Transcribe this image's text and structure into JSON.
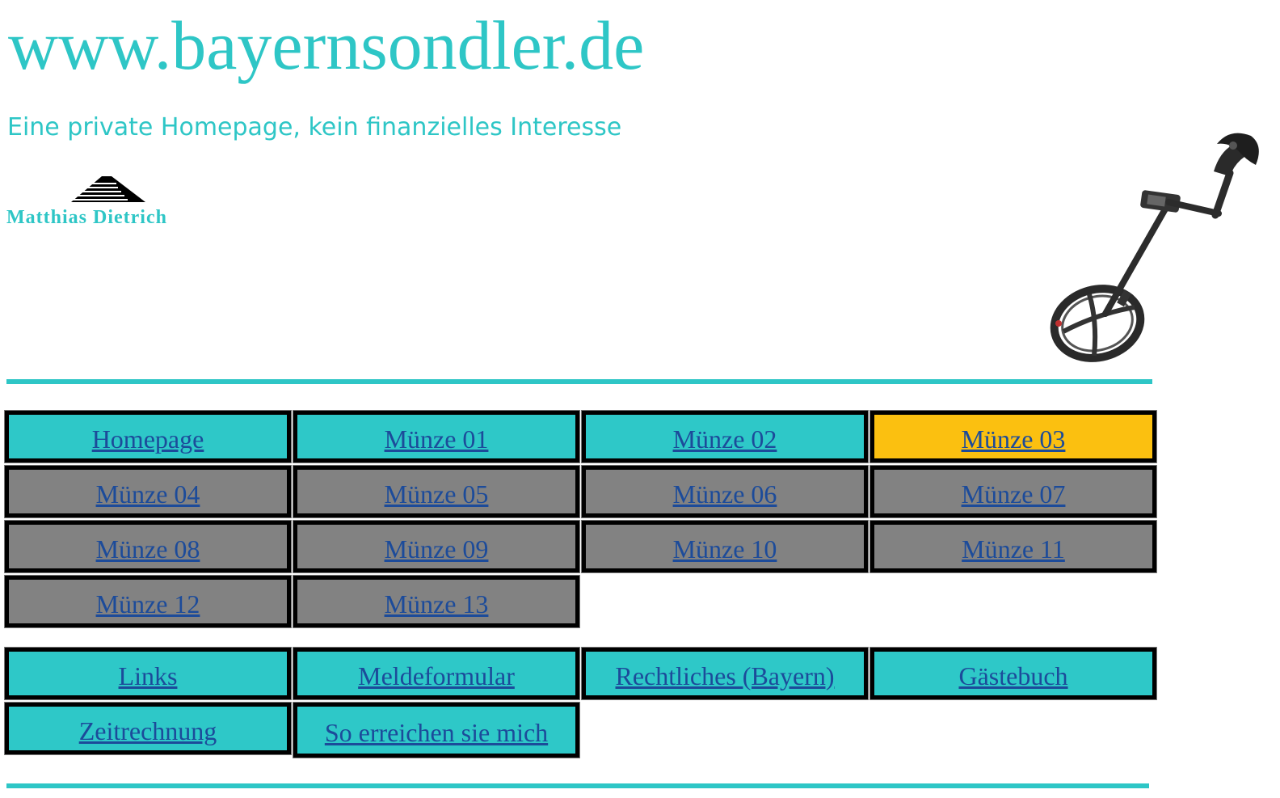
{
  "header": {
    "site_title": "www.bayernsondler.de",
    "tagline": "Eine private Homepage, kein finanzielles Interesse",
    "logo_name": "Matthias Dietrich",
    "accent_color": "#2ec6c6"
  },
  "colors": {
    "cyan_button": "#2ec8c8",
    "grey_button": "#828282",
    "active_button": "#fbc010",
    "link_text": "#1c4b9a"
  },
  "nav": {
    "coins": [
      "Homepage",
      "Münze 01",
      "Münze 02",
      "Münze 03",
      "Münze 04",
      "Münze 05",
      "Münze 06",
      "Münze 07",
      "Münze 08",
      "Münze 09",
      "Münze 10",
      "Münze 11",
      "Münze 12",
      "Münze 13"
    ],
    "active": "Münze 03",
    "extras": [
      "Links",
      "Meldeformular",
      "Rechtliches (Bayern)",
      "Gästebuch",
      "Zeitrechnung",
      "So erreichen sie mich"
    ]
  },
  "images": {
    "logo_icon": "stepped-pyramid-logo-icon",
    "hero_icon": "metal-detector-icon"
  }
}
